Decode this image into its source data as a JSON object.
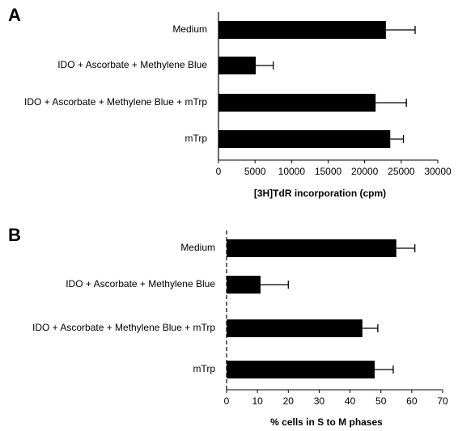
{
  "chart_data": [
    {
      "type": "bar",
      "orientation": "horizontal",
      "panel_label": "A",
      "x_label": "[3H]TdR incorporation (cpm)",
      "categories": [
        "Medium",
        "IDO + Ascorbate + Methylene Blue",
        "IDO + Ascorbate + Methylene Blue + mTrp",
        "mTrp"
      ],
      "values": [
        22900,
        5100,
        21500,
        23500
      ],
      "errors": [
        4000,
        2400,
        4200,
        1800
      ],
      "color": "#000000",
      "xlim": [
        0,
        30000
      ],
      "xticks": [
        0,
        5000,
        10000,
        15000,
        20000,
        25000,
        30000
      ]
    },
    {
      "type": "bar",
      "orientation": "horizontal",
      "panel_label": "B",
      "x_label": "% cells in S to M phases",
      "categories": [
        "Medium",
        "IDO + Ascorbate + Methylene Blue",
        "IDO + Ascorbate + Methylene Blue + mTrp",
        "mTrp"
      ],
      "values": [
        55,
        11,
        44,
        48
      ],
      "errors": [
        6,
        9,
        5,
        6
      ],
      "color": "#000000",
      "xlim": [
        0,
        70
      ],
      "xticks": [
        0,
        10,
        20,
        30,
        40,
        50,
        60,
        70
      ]
    }
  ]
}
